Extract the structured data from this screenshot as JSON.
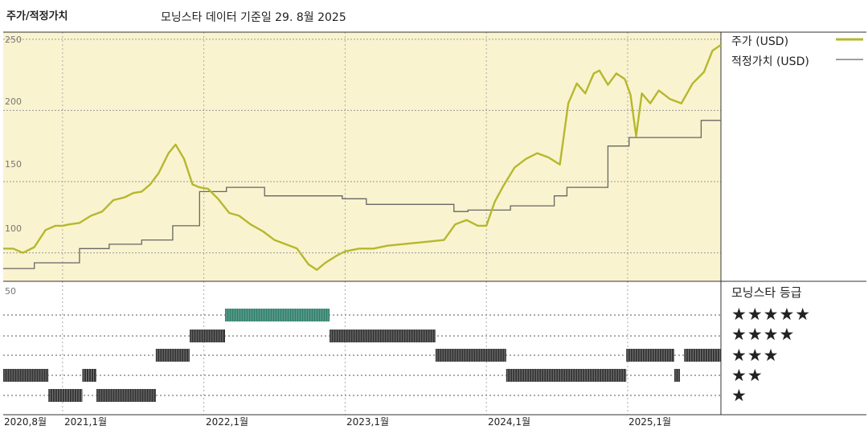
{
  "chart_data": {
    "type": "line",
    "title": "주가/적정가치",
    "subtitle": "모닝스타 데이터 기준일 29. 8월 2025",
    "yticks": [
      "250",
      "200",
      "150",
      "100"
    ],
    "ylim": [
      80,
      255
    ],
    "xlabels": [
      "2020,8월",
      "2021,1월",
      "2022,1월",
      "2023,1월",
      "2024,1월",
      "2025,1월"
    ],
    "xtick_years": [
      2020.58,
      2021.0,
      2022.0,
      2023.0,
      2024.0,
      2025.0
    ],
    "xlim": [
      2020.58,
      2025.66
    ],
    "grid": true,
    "legend_position": "right",
    "colors": {
      "price": "#b5b82e",
      "fair_value": "#666666",
      "panel_bg": "#faf3cf",
      "five_star": "#2e7f6a",
      "rating_bar": "#333333"
    },
    "series": [
      {
        "name": "주가 (USD)",
        "x": [
          2020.58,
          2020.65,
          2020.72,
          2020.8,
          2020.88,
          2020.95,
          2021.0,
          2021.05,
          2021.12,
          2021.2,
          2021.28,
          2021.36,
          2021.44,
          2021.5,
          2021.56,
          2021.62,
          2021.68,
          2021.75,
          2021.8,
          2021.86,
          2021.92,
          2021.97,
          2022.03,
          2022.1,
          2022.18,
          2022.25,
          2022.33,
          2022.42,
          2022.5,
          2022.58,
          2022.66,
          2022.74,
          2022.8,
          2022.86,
          2022.94,
          2023.0,
          2023.1,
          2023.2,
          2023.3,
          2023.4,
          2023.5,
          2023.6,
          2023.7,
          2023.78,
          2023.86,
          2023.94,
          2024.0,
          2024.06,
          2024.12,
          2024.2,
          2024.28,
          2024.36,
          2024.44,
          2024.52,
          2024.58,
          2024.64,
          2024.7,
          2024.76,
          2024.8,
          2024.86,
          2024.92,
          2024.98,
          2025.02,
          2025.06,
          2025.1,
          2025.16,
          2025.22,
          2025.3,
          2025.38,
          2025.46,
          2025.54,
          2025.6,
          2025.66
        ],
        "values": [
          103,
          103,
          100,
          104,
          116,
          119,
          119,
          120,
          121,
          126,
          129,
          137,
          139,
          142,
          143,
          148,
          156,
          170,
          176,
          166,
          148,
          146,
          145,
          138,
          128,
          126,
          120,
          115,
          109,
          106,
          103,
          92,
          88,
          93,
          98,
          101,
          103,
          103,
          105,
          106,
          107,
          108,
          109,
          120,
          123,
          119,
          119,
          136,
          147,
          160,
          166,
          170,
          167,
          162,
          205,
          219,
          212,
          226,
          228,
          218,
          226,
          222,
          211,
          182,
          212,
          205,
          214,
          208,
          205,
          219,
          227,
          242,
          246
        ]
      },
      {
        "name": "적정가치 (USD)",
        "x": [
          2020.58,
          2020.8,
          2020.8,
          2021.12,
          2021.12,
          2021.33,
          2021.33,
          2021.56,
          2021.56,
          2021.78,
          2021.78,
          2021.97,
          2021.97,
          2022.16,
          2022.16,
          2022.43,
          2022.43,
          2022.98,
          2022.98,
          2023.15,
          2023.15,
          2023.77,
          2023.77,
          2023.87,
          2023.87,
          2024.17,
          2024.17,
          2024.48,
          2024.48,
          2024.57,
          2024.57,
          2024.86,
          2024.86,
          2025.01,
          2025.01,
          2025.52,
          2025.52,
          2025.66
        ],
        "values": [
          89,
          89,
          93,
          93,
          103,
          103,
          106,
          106,
          109,
          109,
          119,
          119,
          143,
          143,
          146,
          146,
          140,
          140,
          138,
          138,
          134,
          134,
          129,
          129,
          130,
          130,
          133,
          133,
          140,
          140,
          146,
          146,
          175,
          175,
          181,
          181,
          193,
          193
        ]
      }
    ],
    "rating_panel": {
      "title": "모닝스타 등급",
      "top_label": "50",
      "levels": [
        "★★★★★",
        "★★★★",
        "★★★",
        "★★",
        "★"
      ],
      "segments": [
        {
          "start": 2020.58,
          "end": 2020.9,
          "stars": 2
        },
        {
          "start": 2020.9,
          "end": 2021.14,
          "stars": 1
        },
        {
          "start": 2021.14,
          "end": 2021.24,
          "stars": 2
        },
        {
          "start": 2021.24,
          "end": 2021.66,
          "stars": 1
        },
        {
          "start": 2021.66,
          "end": 2021.9,
          "stars": 3
        },
        {
          "start": 2021.9,
          "end": 2022.15,
          "stars": 4
        },
        {
          "start": 2022.15,
          "end": 2022.89,
          "stars": 5
        },
        {
          "start": 2022.89,
          "end": 2023.64,
          "stars": 4
        },
        {
          "start": 2023.64,
          "end": 2024.14,
          "stars": 3
        },
        {
          "start": 2024.14,
          "end": 2024.99,
          "stars": 2
        },
        {
          "start": 2024.99,
          "end": 2025.33,
          "stars": 3
        },
        {
          "start": 2025.33,
          "end": 2025.37,
          "stars": 2
        },
        {
          "start": 2025.4,
          "end": 2025.66,
          "stars": 3
        }
      ]
    }
  }
}
